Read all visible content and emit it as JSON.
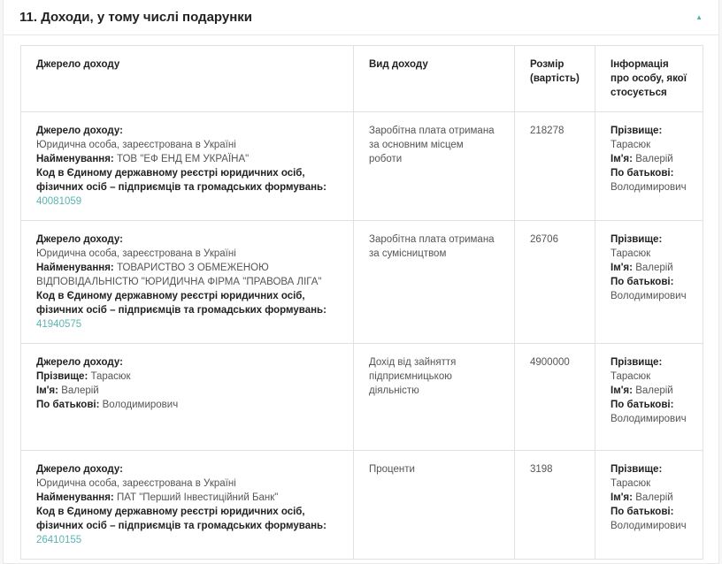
{
  "section": {
    "title": "11.  Доходи, у тому числі подарунки",
    "toggle_icon": "caret-up-icon",
    "accent": "#4fb3a8"
  },
  "table": {
    "headers": [
      "Джерело доходу",
      "Вид доходу",
      "Розмір (вартість)",
      "Інформація про особу, якої стосується"
    ],
    "labels": {
      "source": "Джерело доходу:",
      "name": "Найменування:",
      "code": "Код в Єдиному державному реєстрі юридичних осіб, фізичних осіб – підприємців та громадських формувань:",
      "surname": "Прізвище:",
      "first": "Ім'я:",
      "patronymic": "По батькові:"
    },
    "rows": [
      {
        "source_type": "Юридична особа, зареєстрована в Україні",
        "name": "ТОВ \"ЕФ ЕНД ЕМ УКРАЇНА\"",
        "code": "40081059",
        "kind": "Заробітна плата отримана за основним місцем роботи",
        "amount": "218278",
        "surname": "Тарасюк",
        "first": "Валерій",
        "patronymic": "Володимирович"
      },
      {
        "source_type": "Юридична особа, зареєстрована в Україні",
        "name": "ТОВАРИСТВО З ОБМЕЖЕНОЮ ВІДПОВІДАЛЬНІСТЮ \"ЮРИДИЧНА ФІРМА \"ПРАВОВА ЛІГА\"",
        "code": "41940575",
        "kind": "Заробітна плата отримана за сумісництвом",
        "amount": "26706",
        "surname": "Тарасюк",
        "first": "Валерій",
        "patronymic": "Володимирович"
      },
      {
        "src_surname": "Тарасюк",
        "src_first": "Валерій",
        "src_patronymic": "Володимирович",
        "kind": "Дохід від зайняття підприємницькою діяльністю",
        "amount": "4900000",
        "surname": "Тарасюк",
        "first": "Валерій",
        "patronymic": "Володимирович"
      },
      {
        "source_type": "Юридична особа, зареєстрована в Україні",
        "name": "ПАТ \"Перший Інвестиційний Банк\"",
        "code": "26410155",
        "kind": "Проценти",
        "amount": "3198",
        "surname": "Тарасюк",
        "first": "Валерій",
        "patronymic": "Володимирович"
      }
    ]
  }
}
